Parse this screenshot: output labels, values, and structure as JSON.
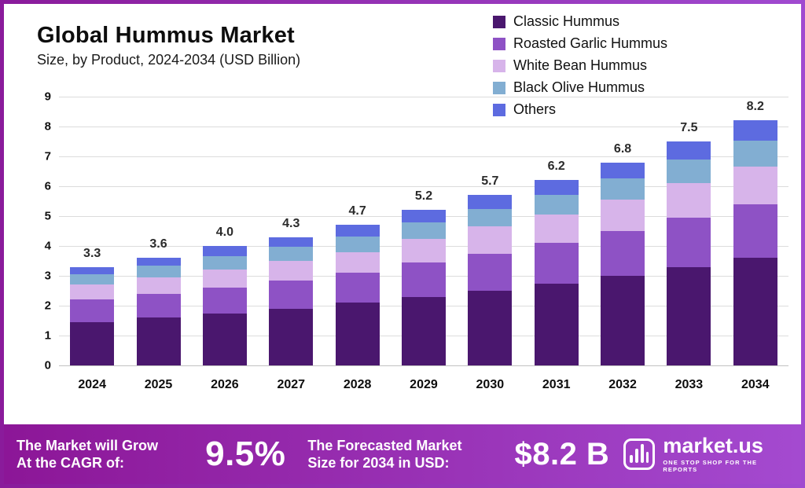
{
  "header": {
    "title": "Global Hummus Market",
    "subtitle": "Size, by Product, 2024-2034 (USD Billion)"
  },
  "chart_data": {
    "type": "bar",
    "stacked": true,
    "title": "Global Hummus Market",
    "subtitle": "Size, by Product, 2024-2034 (USD Billion)",
    "unit": "USD Billion",
    "categories": [
      "2024",
      "2025",
      "2026",
      "2027",
      "2028",
      "2029",
      "2030",
      "2031",
      "2032",
      "2033",
      "2034"
    ],
    "series": [
      {
        "name": "Classic Hummus",
        "color": "#4a176e",
        "values": [
          1.45,
          1.6,
          1.75,
          1.9,
          2.1,
          2.3,
          2.5,
          2.75,
          3.0,
          3.3,
          3.6
        ]
      },
      {
        "name": "Roasted Garlic Hummus",
        "color": "#8e52c5",
        "values": [
          0.75,
          0.8,
          0.85,
          0.95,
          1.0,
          1.15,
          1.25,
          1.35,
          1.5,
          1.65,
          1.8
        ]
      },
      {
        "name": "White Bean Hummus",
        "color": "#d7b4ea",
        "values": [
          0.5,
          0.55,
          0.6,
          0.65,
          0.7,
          0.8,
          0.9,
          0.95,
          1.05,
          1.15,
          1.25
        ]
      },
      {
        "name": "Black Olive Hummus",
        "color": "#82aed2",
        "values": [
          0.35,
          0.38,
          0.45,
          0.47,
          0.52,
          0.55,
          0.6,
          0.65,
          0.72,
          0.8,
          0.88
        ]
      },
      {
        "name": "Others",
        "color": "#5d6be0",
        "values": [
          0.25,
          0.27,
          0.35,
          0.33,
          0.38,
          0.4,
          0.45,
          0.5,
          0.53,
          0.6,
          0.67
        ]
      }
    ],
    "totals": [
      3.3,
      3.6,
      4.0,
      4.3,
      4.7,
      5.2,
      5.7,
      6.2,
      6.8,
      7.5,
      8.2
    ],
    "ylim": [
      0,
      9
    ],
    "yticks": [
      0,
      1,
      2,
      3,
      4,
      5,
      6,
      7,
      8,
      9
    ],
    "grid": true,
    "legend_position": "top-right"
  },
  "banner": {
    "cagr_label_line1": "The Market will Grow",
    "cagr_label_line2": "At the CAGR of:",
    "cagr_value": "9.5%",
    "forecast_label_line1": "The Forecasted Market",
    "forecast_label_line2": "Size for 2034 in USD:",
    "forecast_value": "$8.2 B",
    "logo_text": "market.us",
    "logo_tagline": "ONE STOP SHOP FOR THE REPORTS"
  },
  "colors": {
    "frame_gradient_start": "#8a1b9b",
    "frame_gradient_end": "#a04ad0",
    "background": "#ffffff",
    "gridline": "#dcdcdc"
  }
}
